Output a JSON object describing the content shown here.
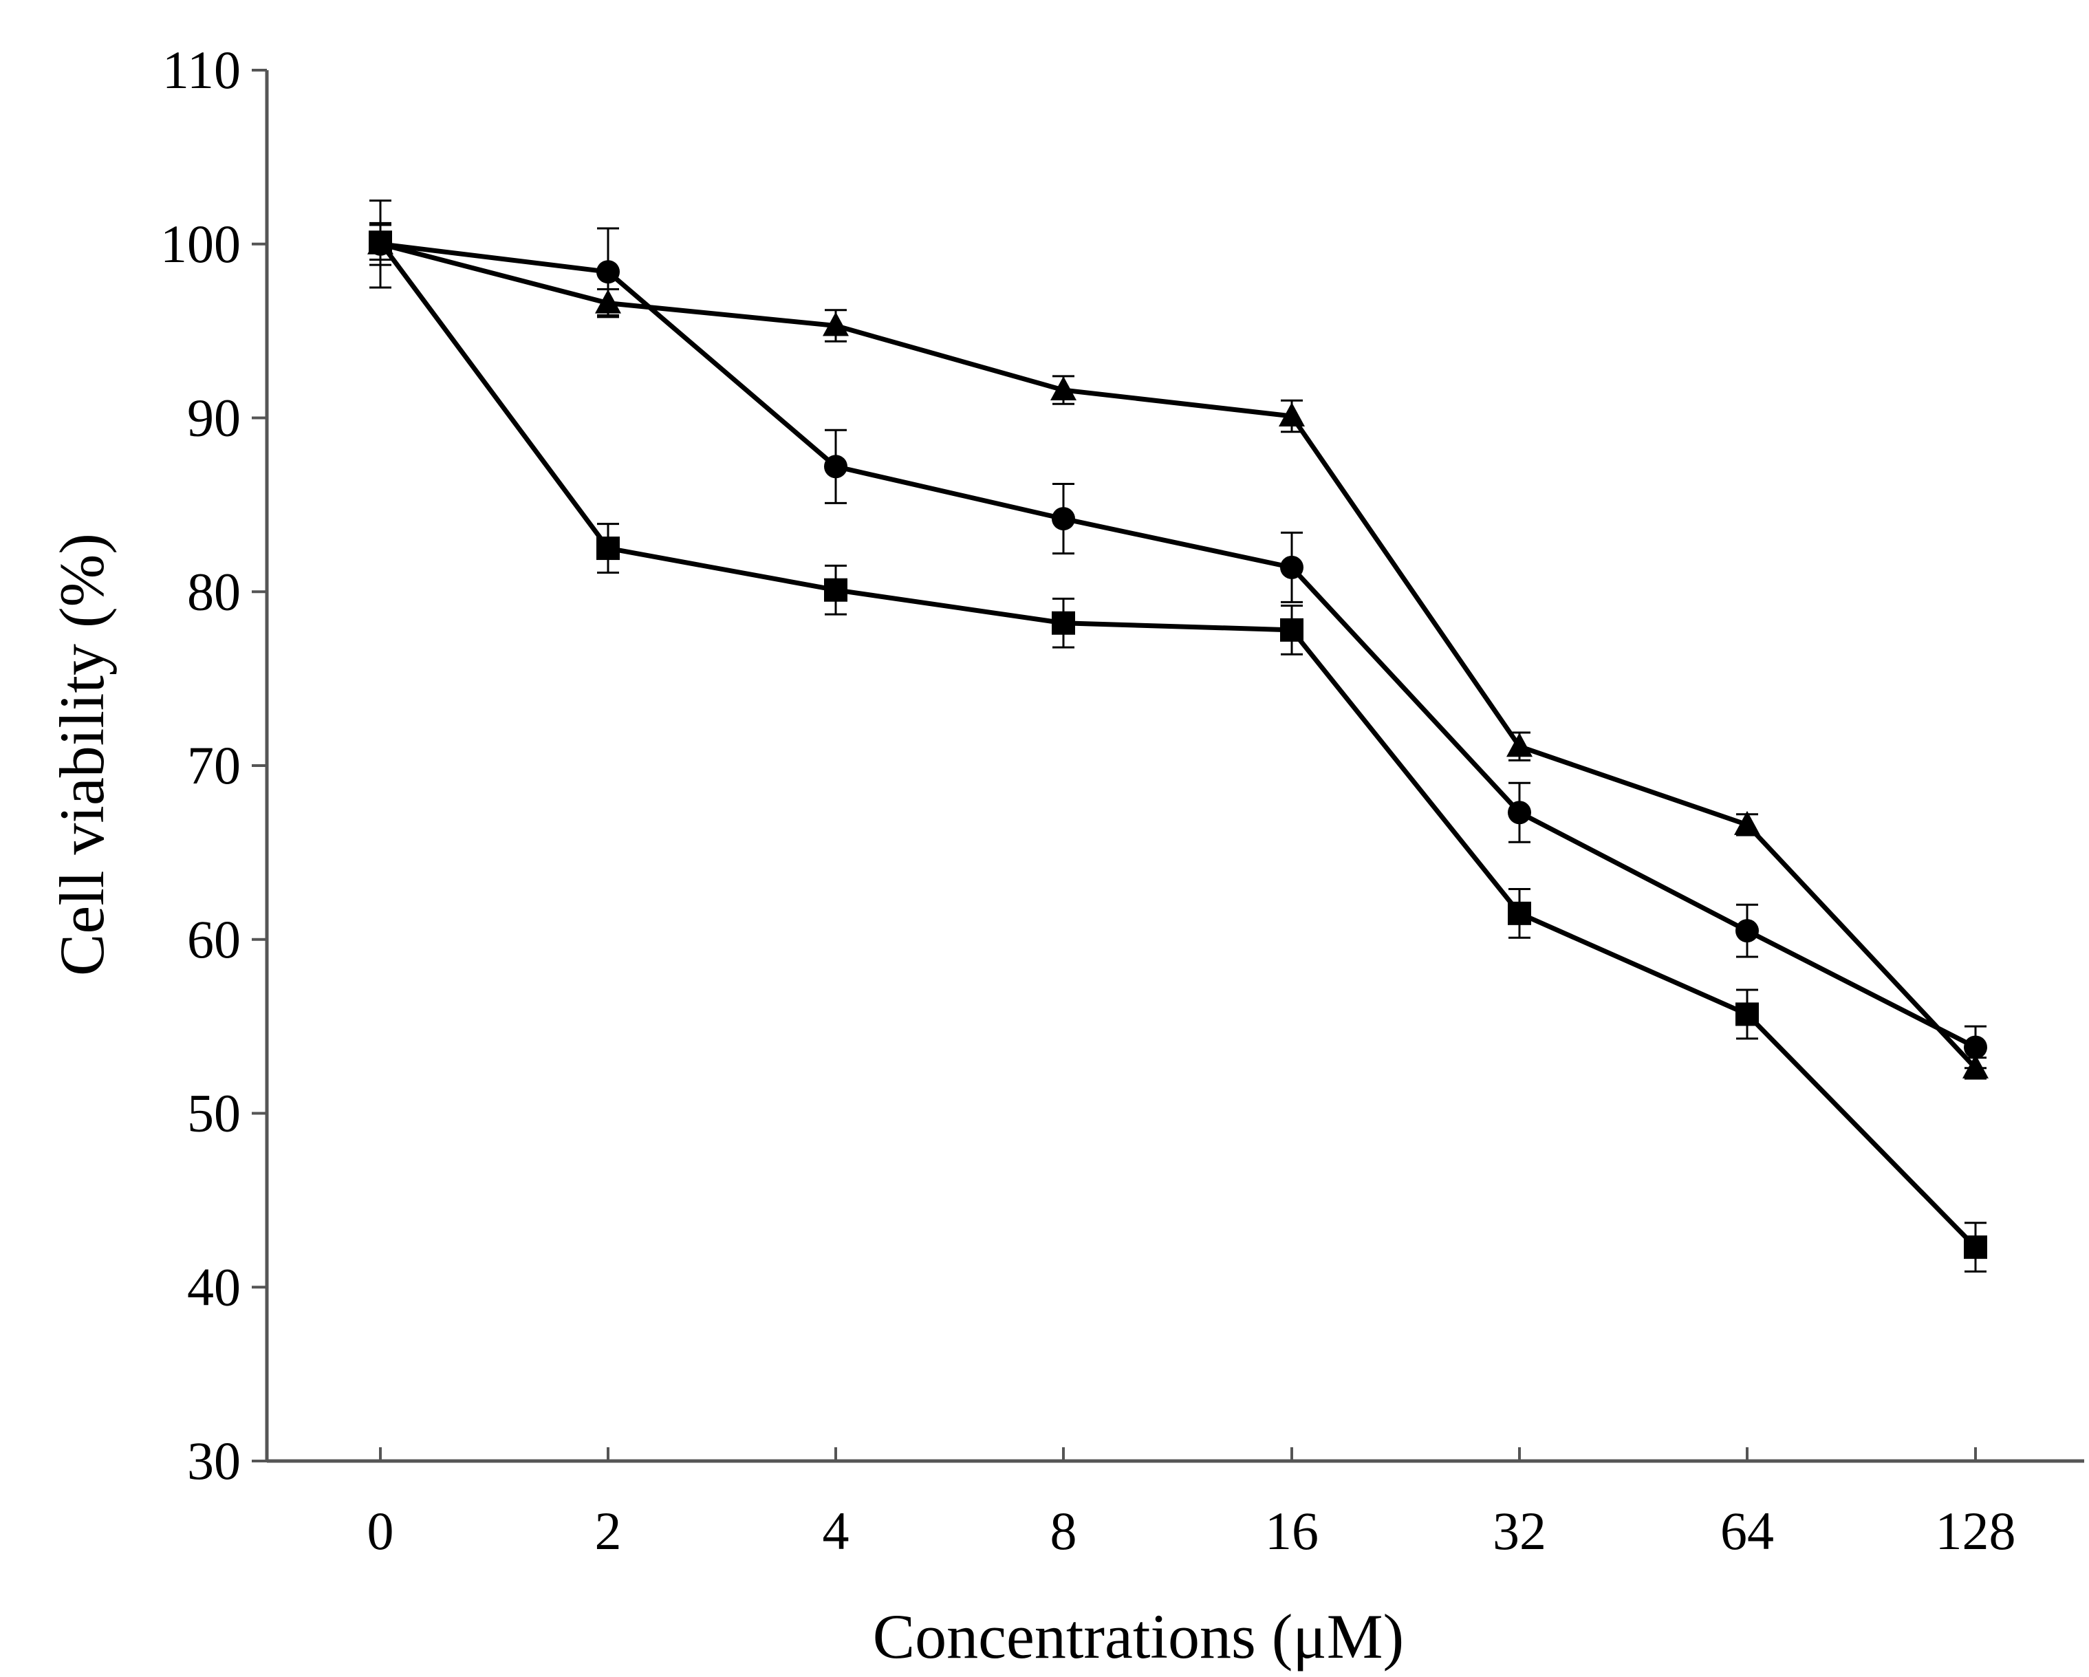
{
  "chart_data": {
    "type": "line",
    "title": "",
    "xlabel": "Concentrations (μM)",
    "ylabel": "Cell viability (%)",
    "categories": [
      "0",
      "2",
      "4",
      "8",
      "16",
      "32",
      "64",
      "128"
    ],
    "ylim": [
      30,
      110
    ],
    "yticks": [
      30,
      40,
      50,
      60,
      70,
      80,
      90,
      100,
      110
    ],
    "grid": false,
    "legend": "none",
    "series": [
      {
        "name": "triangle",
        "marker": "triangle",
        "values": [
          100.0,
          96.6,
          95.3,
          91.6,
          90.1,
          71.1,
          66.6,
          52.6
        ],
        "errors": [
          1.2,
          0.8,
          0.9,
          0.8,
          0.9,
          0.8,
          0.6,
          0.6
        ]
      },
      {
        "name": "circle",
        "marker": "circle",
        "values": [
          100.0,
          98.4,
          87.2,
          84.2,
          81.4,
          67.3,
          60.5,
          53.8
        ],
        "errors": [
          2.5,
          2.5,
          2.1,
          2.0,
          2.0,
          1.7,
          1.5,
          1.2
        ]
      },
      {
        "name": "square",
        "marker": "square",
        "values": [
          100.1,
          82.5,
          80.1,
          78.2,
          77.8,
          61.5,
          55.7,
          42.3
        ],
        "errors": [
          1.0,
          1.4,
          1.4,
          1.4,
          1.4,
          1.4,
          1.4,
          1.4
        ]
      }
    ],
    "colors": {
      "line": "#000000",
      "axis": "#555555"
    }
  }
}
